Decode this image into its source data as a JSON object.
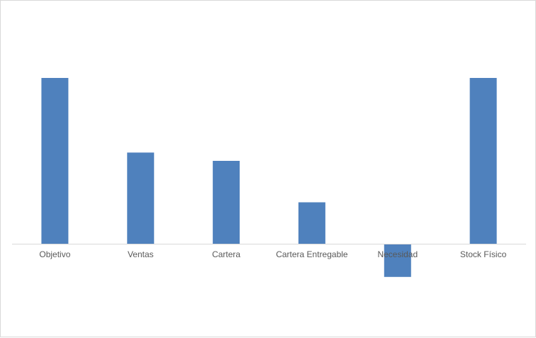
{
  "chart_data": {
    "type": "bar",
    "title": "",
    "xlabel": "",
    "ylabel": "",
    "categories": [
      "Objetivo",
      "Ventas",
      "Cartera",
      "Cartera Entregable",
      "Necesidad",
      "Stock Físico"
    ],
    "values": [
      100,
      55,
      50,
      25,
      -20,
      100
    ],
    "ylim": [
      -40,
      120
    ],
    "grid": false,
    "legend": "none",
    "bar_color": "#4f81bd",
    "axis_color": "#d9d9d9",
    "label_color": "#595959"
  }
}
